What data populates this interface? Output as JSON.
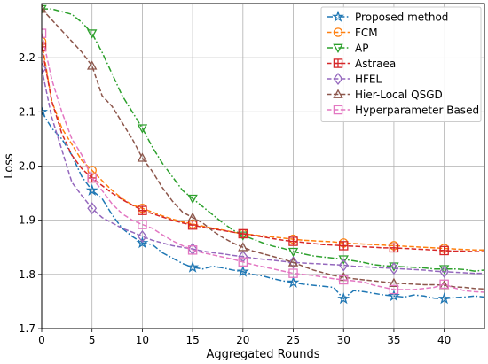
{
  "chart_data": {
    "type": "line",
    "title": "",
    "xlabel": "Aggregated Rounds",
    "ylabel": "Loss",
    "xlim": [
      0,
      44
    ],
    "ylim": [
      1.7,
      2.3
    ],
    "xticks": [
      0,
      5,
      10,
      15,
      20,
      25,
      30,
      35,
      40
    ],
    "yticks": [
      1.7,
      1.8,
      1.9,
      2.0,
      2.1,
      2.2
    ],
    "xtick_labels": [
      "0",
      "5",
      "10",
      "15",
      "20",
      "25",
      "30",
      "35",
      "40"
    ],
    "ytick_labels": [
      "1.7",
      "1.8",
      "1.9",
      "2.0",
      "2.1",
      "2.2"
    ],
    "grid": true,
    "legend_position": "top-right",
    "x": [
      0,
      1,
      2,
      3,
      4,
      5,
      6,
      7,
      8,
      9,
      10,
      11,
      12,
      13,
      14,
      15,
      16,
      17,
      18,
      19,
      20,
      21,
      22,
      23,
      24,
      25,
      26,
      27,
      28,
      29,
      30,
      31,
      32,
      33,
      34,
      35,
      36,
      37,
      38,
      39,
      40,
      41,
      42,
      43,
      44
    ],
    "series": [
      {
        "name": "Proposed method",
        "color": "#1f77b4",
        "dash": "dashdot",
        "marker": "star",
        "values": [
          2.1,
          2.07,
          2.05,
          2.02,
          1.98,
          1.955,
          1.94,
          1.91,
          1.885,
          1.87,
          1.858,
          1.855,
          1.84,
          1.83,
          1.82,
          1.813,
          1.81,
          1.815,
          1.812,
          1.808,
          1.805,
          1.8,
          1.797,
          1.792,
          1.788,
          1.785,
          1.782,
          1.78,
          1.778,
          1.776,
          1.755,
          1.77,
          1.768,
          1.765,
          1.762,
          1.76,
          1.758,
          1.762,
          1.76,
          1.756,
          1.755,
          1.757,
          1.758,
          1.76,
          1.758
        ]
      },
      {
        "name": "FCM",
        "color": "#ff7f0e",
        "dash": "dashed",
        "marker": "circle",
        "values": [
          2.23,
          2.12,
          2.07,
          2.04,
          2.01,
          1.992,
          1.973,
          1.955,
          1.94,
          1.928,
          1.922,
          1.915,
          1.908,
          1.902,
          1.897,
          1.893,
          1.889,
          1.885,
          1.882,
          1.878,
          1.875,
          1.873,
          1.871,
          1.869,
          1.867,
          1.865,
          1.863,
          1.862,
          1.861,
          1.86,
          1.858,
          1.857,
          1.856,
          1.855,
          1.854,
          1.853,
          1.852,
          1.851,
          1.85,
          1.849,
          1.848,
          1.847,
          1.846,
          1.845,
          1.845
        ]
      },
      {
        "name": "AP",
        "color": "#2ca02c",
        "dash": "dashdot",
        "marker": "triangle-down",
        "values": [
          2.29,
          2.29,
          2.285,
          2.28,
          2.265,
          2.245,
          2.21,
          2.17,
          2.13,
          2.1,
          2.07,
          2.035,
          2.005,
          1.98,
          1.955,
          1.94,
          1.925,
          1.91,
          1.895,
          1.882,
          1.872,
          1.865,
          1.858,
          1.852,
          1.848,
          1.842,
          1.838,
          1.834,
          1.832,
          1.83,
          1.828,
          1.825,
          1.822,
          1.818,
          1.816,
          1.815,
          1.814,
          1.813,
          1.812,
          1.81,
          1.81,
          1.81,
          1.809,
          1.806,
          1.808
        ]
      },
      {
        "name": "Astraea",
        "color": "#d62728",
        "dash": "dashed",
        "marker": "plus-square",
        "values": [
          2.22,
          2.12,
          2.06,
          2.02,
          1.995,
          1.978,
          1.964,
          1.95,
          1.938,
          1.928,
          1.918,
          1.912,
          1.906,
          1.9,
          1.895,
          1.891,
          1.887,
          1.884,
          1.881,
          1.878,
          1.875,
          1.872,
          1.869,
          1.866,
          1.863,
          1.861,
          1.859,
          1.857,
          1.855,
          1.854,
          1.853,
          1.852,
          1.851,
          1.85,
          1.849,
          1.849,
          1.848,
          1.847,
          1.846,
          1.845,
          1.844,
          1.843,
          1.843,
          1.842,
          1.842
        ]
      },
      {
        "name": "HFEL",
        "color": "#9467bd",
        "dash": "dashed",
        "marker": "diamond",
        "values": [
          2.18,
          2.09,
          2.03,
          1.97,
          1.945,
          1.922,
          1.905,
          1.895,
          1.885,
          1.878,
          1.87,
          1.863,
          1.858,
          1.853,
          1.85,
          1.847,
          1.843,
          1.84,
          1.838,
          1.835,
          1.833,
          1.83,
          1.828,
          1.826,
          1.824,
          1.822,
          1.821,
          1.82,
          1.819,
          1.818,
          1.817,
          1.815,
          1.814,
          1.813,
          1.812,
          1.811,
          1.81,
          1.809,
          1.808,
          1.806,
          1.805,
          1.804,
          1.803,
          1.802,
          1.802
        ]
      },
      {
        "name": "Hier-Local QSGD",
        "color": "#8c564b",
        "dash": "dashed",
        "marker": "triangle-up",
        "values": [
          2.29,
          2.27,
          2.25,
          2.23,
          2.21,
          2.185,
          2.13,
          2.11,
          2.08,
          2.05,
          2.015,
          1.99,
          1.96,
          1.935,
          1.915,
          1.905,
          1.895,
          1.88,
          1.868,
          1.858,
          1.85,
          1.843,
          1.838,
          1.833,
          1.828,
          1.822,
          1.815,
          1.808,
          1.803,
          1.798,
          1.795,
          1.792,
          1.79,
          1.788,
          1.786,
          1.784,
          1.783,
          1.782,
          1.781,
          1.781,
          1.78,
          1.777,
          1.776,
          1.774,
          1.773
        ]
      },
      {
        "name": "Hyperparameter Based",
        "color": "#e377c2",
        "dash": "dashed",
        "marker": "square",
        "values": [
          2.245,
          2.16,
          2.1,
          2.05,
          2.02,
          1.978,
          1.955,
          1.93,
          1.912,
          1.9,
          1.892,
          1.885,
          1.873,
          1.862,
          1.853,
          1.845,
          1.84,
          1.836,
          1.832,
          1.828,
          1.823,
          1.818,
          1.814,
          1.81,
          1.806,
          1.802,
          1.8,
          1.798,
          1.795,
          1.792,
          1.79,
          1.788,
          1.786,
          1.78,
          1.776,
          1.772,
          1.772,
          1.772,
          1.774,
          1.776,
          1.782,
          1.775,
          1.77,
          1.768,
          1.767
        ]
      }
    ]
  }
}
